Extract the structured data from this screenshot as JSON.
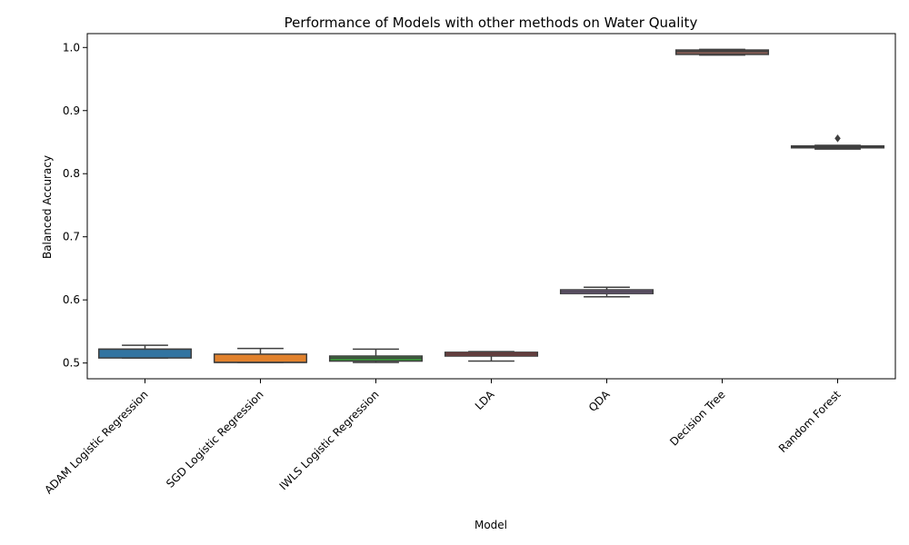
{
  "chart_data": {
    "type": "box",
    "title": "Performance of Models with other methods on Water Quality",
    "xlabel": "Model",
    "ylabel": "Balanced Accuracy",
    "ylim": [
      0.475,
      1.022
    ],
    "yticks": [
      0.5,
      0.6,
      0.7,
      0.8,
      0.9,
      1.0
    ],
    "ytick_labels": [
      "0.5",
      "0.6",
      "0.7",
      "0.8",
      "0.9",
      "1.0"
    ],
    "grid": false,
    "categories": [
      "ADAM Logistic Regression",
      "SGD Logistic Regression",
      "IWLS Logistic Regression",
      "LDA",
      "QDA",
      "Decision Tree",
      "Random Forest"
    ],
    "colors": [
      "#3274a1",
      "#e1812c",
      "#3a923a",
      "#c03d3e",
      "#9372b2",
      "#845b53",
      "#d684bd"
    ],
    "boxes": [
      {
        "whislo": 0.508,
        "q1": 0.508,
        "med": 0.522,
        "q3": 0.522,
        "whishi": 0.528,
        "fliers": []
      },
      {
        "whislo": 0.501,
        "q1": 0.501,
        "med": 0.501,
        "q3": 0.514,
        "whishi": 0.523,
        "fliers": []
      },
      {
        "whislo": 0.501,
        "q1": 0.503,
        "med": 0.508,
        "q3": 0.511,
        "whishi": 0.522,
        "fliers": []
      },
      {
        "whislo": 0.503,
        "q1": 0.511,
        "med": 0.514,
        "q3": 0.517,
        "whishi": 0.518,
        "fliers": []
      },
      {
        "whislo": 0.605,
        "q1": 0.61,
        "med": 0.613,
        "q3": 0.616,
        "whishi": 0.62,
        "fliers": []
      },
      {
        "whislo": 0.988,
        "q1": 0.989,
        "med": 0.994,
        "q3": 0.996,
        "whishi": 0.997,
        "fliers": []
      },
      {
        "whislo": 0.839,
        "q1": 0.841,
        "med": 0.843,
        "q3": 0.844,
        "whishi": 0.845,
        "fliers": [
          0.856
        ]
      }
    ]
  }
}
